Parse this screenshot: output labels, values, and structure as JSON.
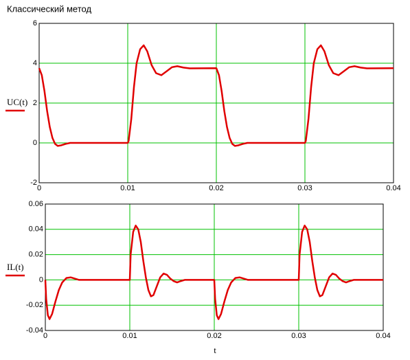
{
  "chart_data": [
    {
      "type": "line",
      "title": "Классический метод",
      "x": [
        0,
        0.0003,
        0.0006,
        0.0009,
        0.0012,
        0.0015,
        0.0018,
        0.0021,
        0.0025,
        0.003,
        0.0035,
        0.01,
        0.0101,
        0.0104,
        0.0107,
        0.011,
        0.0114,
        0.0118,
        0.0122,
        0.0127,
        0.0132,
        0.0138,
        0.0144,
        0.015,
        0.0156,
        0.0163,
        0.017,
        0.02,
        0.0203,
        0.0206,
        0.0209,
        0.0212,
        0.0215,
        0.0218,
        0.0221,
        0.0225,
        0.023,
        0.0235,
        0.03,
        0.0301,
        0.0304,
        0.0307,
        0.031,
        0.0314,
        0.0318,
        0.0322,
        0.0327,
        0.0332,
        0.0338,
        0.0344,
        0.035,
        0.0356,
        0.0363,
        0.037,
        0.04
      ],
      "series": [
        {
          "name": "UC(t)",
          "color": "#e00000",
          "values": [
            3.75,
            3.4,
            2.6,
            1.6,
            0.8,
            0.25,
            -0.05,
            -0.15,
            -0.12,
            -0.05,
            0,
            0,
            0.1,
            1.2,
            2.8,
            4,
            4.7,
            4.9,
            4.6,
            3.9,
            3.5,
            3.4,
            3.6,
            3.8,
            3.85,
            3.78,
            3.74,
            3.75,
            3.4,
            2.6,
            1.6,
            0.8,
            0.25,
            -0.05,
            -0.15,
            -0.12,
            -0.05,
            0,
            0,
            0.1,
            1.2,
            2.8,
            4,
            4.7,
            4.9,
            4.6,
            3.9,
            3.5,
            3.4,
            3.6,
            3.8,
            3.85,
            3.78,
            3.74,
            3.75
          ]
        }
      ],
      "xlim": [
        0,
        0.04
      ],
      "xticks": [
        0,
        0.01,
        0.02,
        0.03,
        0.04
      ],
      "ylim": [
        -2,
        6
      ],
      "yticks": [
        -2,
        0,
        2,
        4,
        6
      ],
      "grid": true,
      "grid_color": "#00c000"
    },
    {
      "type": "line",
      "xlabel": "t",
      "x": [
        0,
        0.0001,
        0.0003,
        0.0005,
        0.0008,
        0.0012,
        0.0016,
        0.002,
        0.0025,
        0.003,
        0.0035,
        0.004,
        0.01,
        0.0101,
        0.0104,
        0.0107,
        0.011,
        0.0113,
        0.0116,
        0.0119,
        0.0122,
        0.0125,
        0.0128,
        0.0132,
        0.0136,
        0.014,
        0.0144,
        0.0148,
        0.0152,
        0.0156,
        0.016,
        0.0165,
        0.02,
        0.0201,
        0.0203,
        0.0205,
        0.0208,
        0.0212,
        0.0216,
        0.022,
        0.0225,
        0.023,
        0.0235,
        0.024,
        0.03,
        0.0301,
        0.0304,
        0.0307,
        0.031,
        0.0313,
        0.0316,
        0.0319,
        0.0322,
        0.0325,
        0.0328,
        0.0332,
        0.0336,
        0.034,
        0.0344,
        0.0348,
        0.0352,
        0.0356,
        0.036,
        0.0365,
        0.04
      ],
      "series": [
        {
          "name": "IL(t)",
          "color": "#e00000",
          "values": [
            0,
            -0.015,
            -0.028,
            -0.031,
            -0.027,
            -0.017,
            -0.008,
            -0.002,
            0.0015,
            0.002,
            0.001,
            0,
            0,
            0.02,
            0.038,
            0.043,
            0.04,
            0.03,
            0.015,
            0.002,
            -0.008,
            -0.013,
            -0.012,
            -0.005,
            0.002,
            0.005,
            0.004,
            0.001,
            -0.001,
            -0.002,
            -0.001,
            0,
            0,
            -0.015,
            -0.028,
            -0.031,
            -0.027,
            -0.017,
            -0.008,
            -0.002,
            0.0015,
            0.002,
            0.001,
            0,
            0,
            0.02,
            0.038,
            0.043,
            0.04,
            0.03,
            0.015,
            0.002,
            -0.008,
            -0.013,
            -0.012,
            -0.005,
            0.002,
            0.005,
            0.004,
            0.001,
            -0.001,
            -0.002,
            -0.001,
            0,
            0
          ]
        }
      ],
      "xlim": [
        0,
        0.04
      ],
      "xticks": [
        0,
        0.01,
        0.02,
        0.03,
        0.04
      ],
      "ylim": [
        -0.04,
        0.06
      ],
      "yticks": [
        -0.04,
        -0.02,
        0,
        0.02,
        0.04,
        0.06
      ],
      "grid": true,
      "grid_color": "#00c000"
    }
  ]
}
